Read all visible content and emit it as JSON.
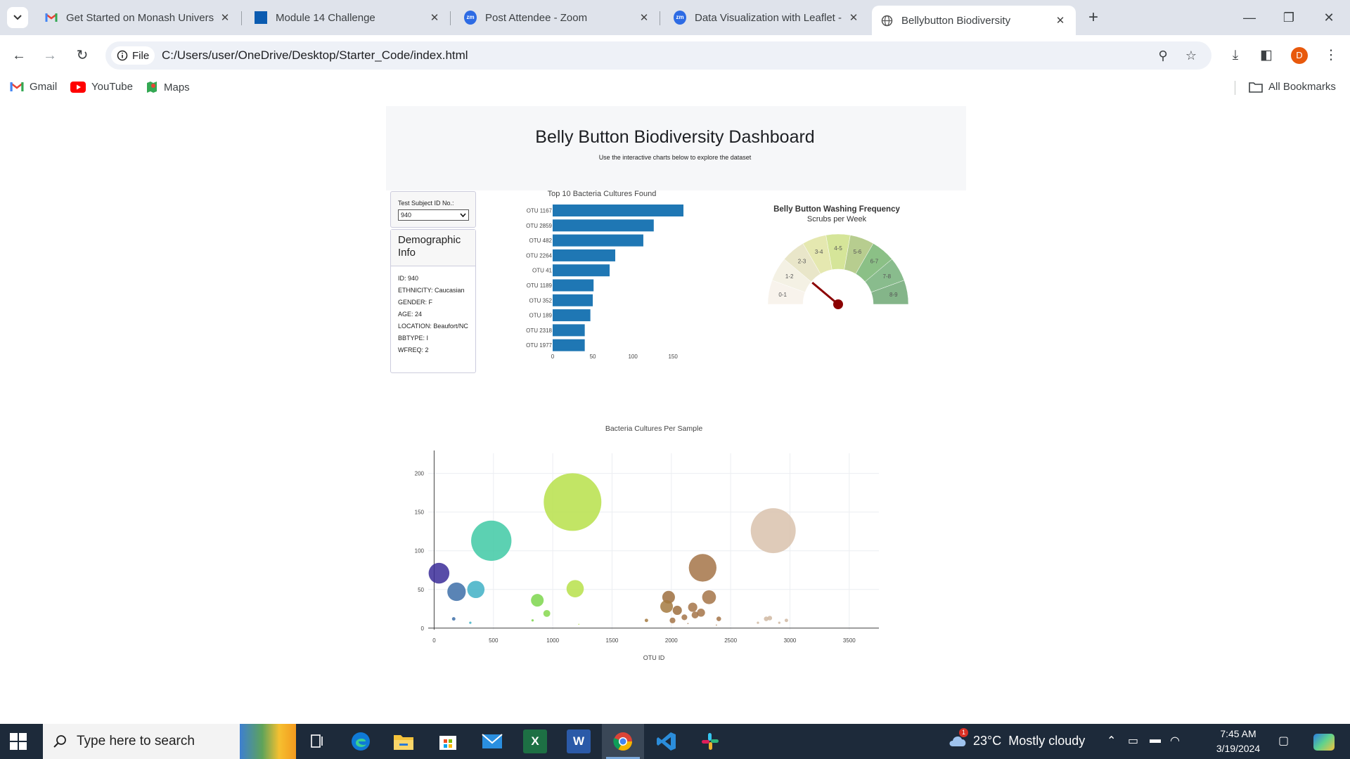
{
  "browser": {
    "tabs": [
      {
        "title": "Get Started on Monash Univers",
        "icon": "gmail-icon"
      },
      {
        "title": "Module 14 Challenge",
        "icon": "monash-icon"
      },
      {
        "title": "Post Attendee - Zoom",
        "icon": "zoom-icon"
      },
      {
        "title": "Data Visualization with Leaflet -",
        "icon": "zoom-icon"
      },
      {
        "title": "Bellybutton Biodiversity",
        "icon": "globe-icon",
        "active": true
      }
    ],
    "address": {
      "scheme_chip": "File",
      "url": "C:/Users/user/OneDrive/Desktop/Starter_Code/index.html"
    },
    "profile_initial": "D",
    "bookmarks": [
      "Gmail",
      "YouTube",
      "Maps"
    ],
    "all_bookmarks": "All Bookmarks"
  },
  "page": {
    "title": "Belly Button Biodiversity Dashboard",
    "subtitle": "Use the interactive charts below to explore the dataset",
    "selector": {
      "label": "Test Subject ID No.:",
      "value": "940"
    },
    "demographic": {
      "title": "Demographic Info",
      "lines": [
        "ID: 940",
        "ETHNICITY: Caucasian",
        "GENDER: F",
        "AGE: 24",
        "LOCATION: Beaufort/NC",
        "BBTYPE: I",
        "WFREQ: 2"
      ]
    }
  },
  "chart_data": [
    {
      "type": "bar",
      "orientation": "horizontal",
      "title": "Top 10 Bacteria Cultures Found",
      "categories": [
        "OTU 1167",
        "OTU 2859",
        "OTU 482",
        "OTU 2264",
        "OTU 41",
        "OTU 1189",
        "OTU 352",
        "OTU 189",
        "OTU 2318",
        "OTU 1977"
      ],
      "values": [
        163,
        126,
        113,
        78,
        71,
        51,
        50,
        47,
        40,
        40
      ],
      "x_ticks": [
        0,
        50,
        100,
        150
      ],
      "color": "#1f77b4"
    },
    {
      "type": "gauge",
      "title": "Belly Button Washing Frequency",
      "subtitle": "Scrubs per Week",
      "sectors": [
        "0-1",
        "1-2",
        "2-3",
        "3-4",
        "4-5",
        "5-6",
        "6-7",
        "7-8",
        "8-9"
      ],
      "sector_colors": [
        "#f8f3ec",
        "#f4f1e4",
        "#e9e6c9",
        "#e5e8b0",
        "#d5e599",
        "#b7cd8f",
        "#8bc086",
        "#89bc8d",
        "#84b589"
      ],
      "value": 2,
      "range": [
        0,
        9
      ],
      "needle_color": "#8b0000"
    },
    {
      "type": "scatter",
      "subtype": "bubble",
      "title": "Bacteria Cultures Per Sample",
      "xlabel": "OTU ID",
      "x_ticks": [
        0,
        500,
        1000,
        1500,
        2000,
        2500,
        3000,
        3500
      ],
      "y_ticks": [
        0,
        50,
        100,
        150,
        200
      ],
      "xlim": [
        -50,
        3750
      ],
      "ylim": [
        -2,
        226
      ],
      "points": [
        {
          "x": 41,
          "y": 71,
          "color": "#3b2d99"
        },
        {
          "x": 189,
          "y": 47,
          "color": "#3d6ea8"
        },
        {
          "x": 352,
          "y": 50,
          "color": "#3fb0c6"
        },
        {
          "x": 482,
          "y": 113,
          "color": "#3fc9a4"
        },
        {
          "x": 1167,
          "y": 163,
          "color": "#b7e04a"
        },
        {
          "x": 1189,
          "y": 51,
          "color": "#b7e04a"
        },
        {
          "x": 870,
          "y": 36,
          "color": "#7dd64c"
        },
        {
          "x": 950,
          "y": 19,
          "color": "#86d84e"
        },
        {
          "x": 2859,
          "y": 126,
          "color": "#d9c2ad"
        },
        {
          "x": 2264,
          "y": 78,
          "color": "#a47448"
        },
        {
          "x": 2318,
          "y": 40,
          "color": "#a47448"
        },
        {
          "x": 1977,
          "y": 40,
          "color": "#9e6f3e"
        },
        {
          "x": 1960,
          "y": 28,
          "color": "#a57a40"
        },
        {
          "x": 2050,
          "y": 23,
          "color": "#9e6f3e"
        },
        {
          "x": 2180,
          "y": 27,
          "color": "#a47448"
        },
        {
          "x": 2250,
          "y": 20,
          "color": "#a47448"
        },
        {
          "x": 2200,
          "y": 17,
          "color": "#a47448"
        },
        {
          "x": 2110,
          "y": 14,
          "color": "#a47448"
        },
        {
          "x": 2010,
          "y": 10,
          "color": "#a47448"
        },
        {
          "x": 2400,
          "y": 12,
          "color": "#a47448"
        },
        {
          "x": 1790,
          "y": 10,
          "color": "#a57a40"
        },
        {
          "x": 2800,
          "y": 12,
          "color": "#d0b8a2"
        },
        {
          "x": 2830,
          "y": 13,
          "color": "#d0b8a2"
        },
        {
          "x": 2970,
          "y": 10,
          "color": "#d0b8a2"
        },
        {
          "x": 2730,
          "y": 7,
          "color": "#d0b8a2"
        },
        {
          "x": 2910,
          "y": 7,
          "color": "#d0b8a2"
        },
        {
          "x": 165,
          "y": 12,
          "color": "#3d6ea8"
        },
        {
          "x": 305,
          "y": 7,
          "color": "#3fb0c6"
        },
        {
          "x": 830,
          "y": 10,
          "color": "#7dd64c"
        },
        {
          "x": 1220,
          "y": 5,
          "color": "#b7e04a"
        },
        {
          "x": 2140,
          "y": 6,
          "color": "#a47448"
        },
        {
          "x": 2380,
          "y": 4,
          "color": "#a47448"
        }
      ],
      "sizes": [
        18,
        16,
        15,
        35,
        50,
        15,
        11,
        6,
        39,
        24,
        12,
        11,
        11,
        8,
        8,
        7,
        6,
        5,
        5,
        4,
        3,
        4,
        4,
        3,
        2,
        2,
        3,
        2,
        2,
        1,
        1,
        1
      ]
    }
  ],
  "taskbar": {
    "search_placeholder": "Type here to search",
    "weather": "23°C  Mostly cloudy",
    "weather_badge": "1",
    "time": "7:45 AM",
    "date": "3/19/2024",
    "apps": [
      "widgets-icon",
      "task-view-icon",
      "edge-icon",
      "file-explorer-icon",
      "store-icon",
      "mail-icon",
      "excel-icon",
      "word-icon",
      "chrome-icon",
      "vscode-icon",
      "slack-icon"
    ]
  }
}
